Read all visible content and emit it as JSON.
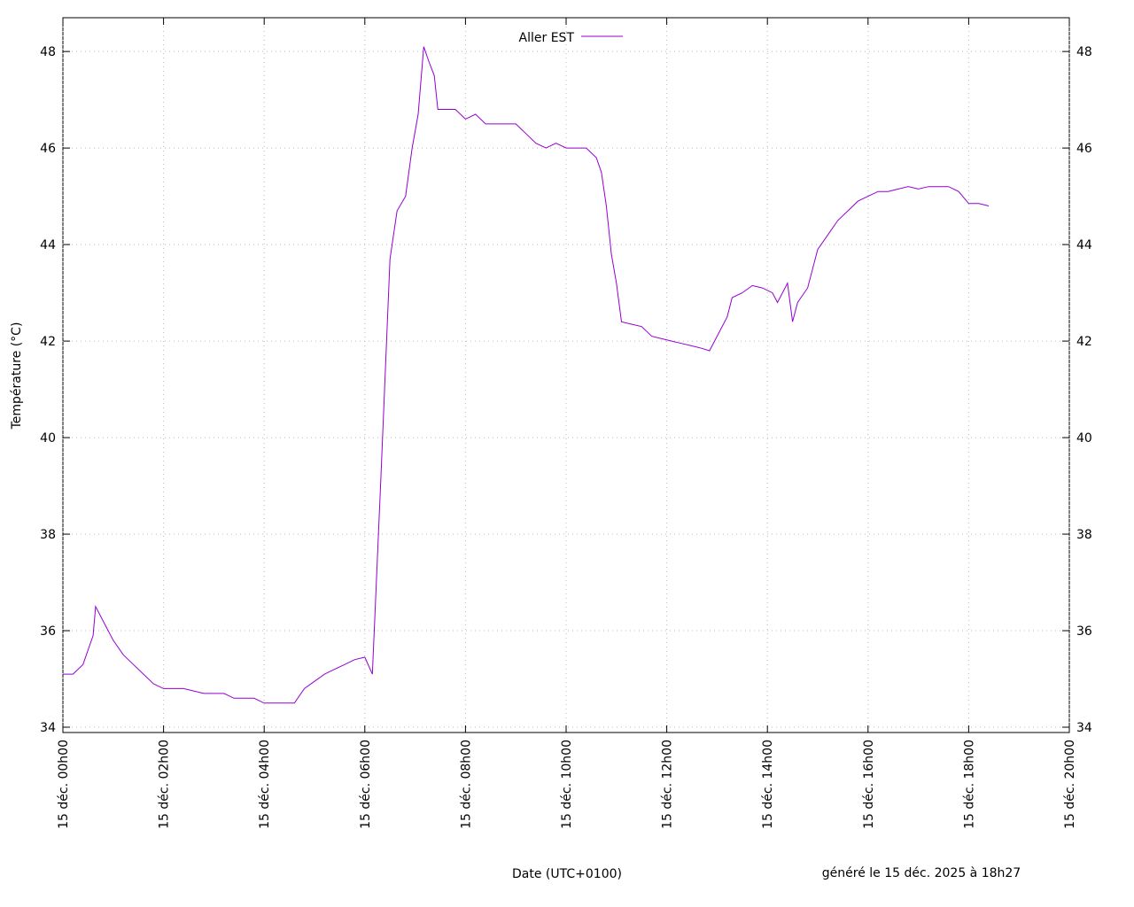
{
  "chart_data": {
    "type": "line",
    "legend_label": "Aller EST",
    "xlabel": "Date (UTC+0100)",
    "ylabel": "Température (°C)",
    "annotation": "généré le 15 déc. 2025 à 18h27",
    "legend_position": "top-center",
    "grid": true,
    "xlim": [
      0,
      20
    ],
    "xticks": [
      {
        "value": 0,
        "label": "15 déc. 00h00"
      },
      {
        "value": 2,
        "label": "15 déc. 02h00"
      },
      {
        "value": 4,
        "label": "15 déc. 04h00"
      },
      {
        "value": 6,
        "label": "15 déc. 06h00"
      },
      {
        "value": 8,
        "label": "15 déc. 08h00"
      },
      {
        "value": 10,
        "label": "15 déc. 10h00"
      },
      {
        "value": 12,
        "label": "15 déc. 12h00"
      },
      {
        "value": 14,
        "label": "15 déc. 14h00"
      },
      {
        "value": 16,
        "label": "15 déc. 16h00"
      },
      {
        "value": 18,
        "label": "15 déc. 18h00"
      },
      {
        "value": 20,
        "label": "15 déc. 20h00"
      }
    ],
    "ylim": [
      33.89,
      48.7
    ],
    "yticks": [
      34,
      36,
      38,
      40,
      42,
      44,
      46,
      48
    ],
    "x": [
      0,
      0.2,
      0.4,
      0.6,
      0.65,
      0.8,
      1.0,
      1.2,
      1.4,
      1.6,
      1.8,
      2.0,
      2.2,
      2.4,
      2.6,
      2.8,
      3.0,
      3.2,
      3.4,
      3.6,
      3.8,
      4.0,
      4.2,
      4.4,
      4.6,
      4.8,
      5.0,
      5.2,
      5.4,
      5.6,
      5.8,
      6.0,
      6.15,
      6.32,
      6.5,
      6.64,
      6.81,
      6.94,
      7.06,
      7.17,
      7.27,
      7.38,
      7.45,
      7.6,
      7.8,
      8.0,
      8.2,
      8.4,
      8.6,
      8.8,
      9.0,
      9.2,
      9.4,
      9.6,
      9.8,
      10.0,
      10.2,
      10.4,
      10.6,
      10.7,
      10.8,
      10.9,
      11.0,
      11.1,
      11.3,
      11.5,
      11.7,
      11.9,
      12.1,
      12.3,
      12.5,
      12.7,
      12.85,
      13.0,
      13.2,
      13.3,
      13.5,
      13.7,
      13.9,
      14.1,
      14.2,
      14.4,
      14.5,
      14.6,
      14.8,
      15.0,
      15.2,
      15.4,
      15.6,
      15.8,
      16.0,
      16.2,
      16.4,
      16.6,
      16.8,
      17.0,
      17.2,
      17.4,
      17.6,
      17.8,
      18.0,
      18.2,
      18.4
    ],
    "series": [
      {
        "name": "Aller EST",
        "color": "#9400d3",
        "values": [
          35.1,
          35.1,
          35.3,
          35.9,
          36.5,
          36.2,
          35.8,
          35.5,
          35.3,
          35.1,
          34.9,
          34.8,
          34.8,
          34.8,
          34.75,
          34.7,
          34.7,
          34.7,
          34.6,
          34.6,
          34.6,
          34.5,
          34.5,
          34.5,
          34.5,
          34.8,
          34.95,
          35.1,
          35.2,
          35.3,
          35.4,
          35.45,
          35.1,
          39.2,
          43.7,
          44.7,
          45.0,
          46.0,
          46.7,
          48.1,
          47.8,
          47.5,
          46.8,
          46.8,
          46.8,
          46.6,
          46.7,
          46.5,
          46.5,
          46.5,
          46.5,
          46.3,
          46.1,
          46.0,
          46.1,
          46.0,
          46.0,
          46.0,
          45.8,
          45.5,
          44.8,
          43.8,
          43.2,
          42.4,
          42.35,
          42.3,
          42.1,
          42.05,
          42.0,
          41.95,
          41.9,
          41.85,
          41.8,
          42.1,
          42.5,
          42.9,
          43.0,
          43.15,
          43.1,
          43.0,
          42.8,
          43.2,
          42.4,
          42.8,
          43.1,
          43.9,
          44.2,
          44.5,
          44.7,
          44.9,
          45.0,
          45.1,
          45.1,
          45.15,
          45.2,
          45.15,
          45.2,
          45.2,
          45.2,
          45.1,
          44.85,
          44.85,
          44.8
        ]
      }
    ]
  }
}
